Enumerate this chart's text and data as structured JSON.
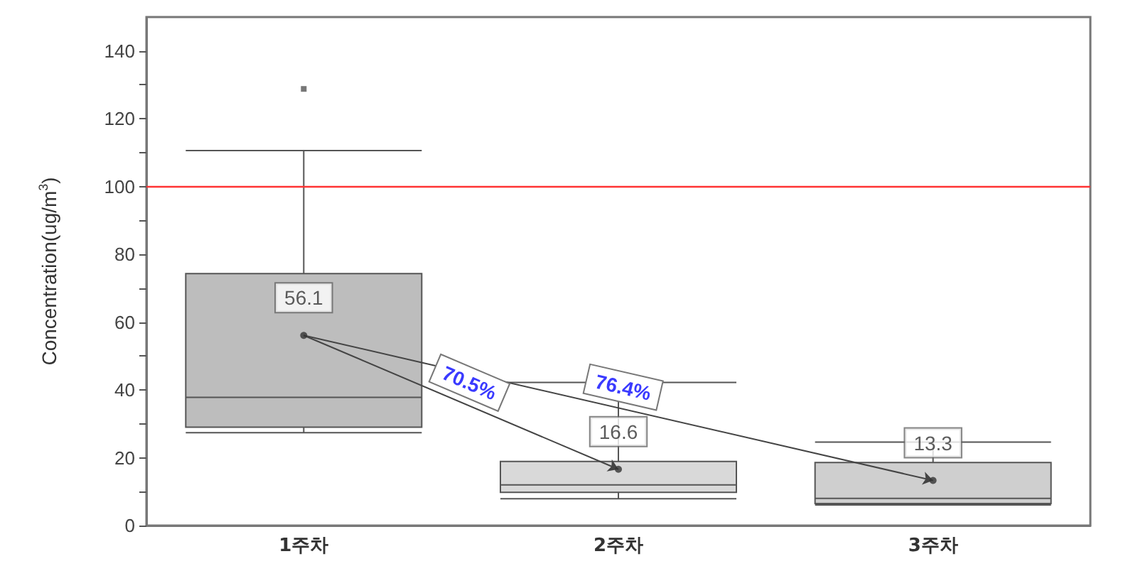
{
  "chart_data": {
    "type": "box",
    "ylabel": "Concentration(ug/m$^{3}$)",
    "categories": [
      "1주차",
      "2주차",
      "3주차"
    ],
    "series": [
      {
        "type": "box",
        "colors": [
          "#bdbdbd",
          "#d9d9d9",
          "#cfcfcf"
        ],
        "boxes": [
          {
            "low": 27.4,
            "q1": 29,
            "median": 37.8,
            "q3": 74.3,
            "high": 110.6,
            "outliers": [
              128.8
            ]
          },
          {
            "low": 7.9,
            "q1": 9.8,
            "median": 12,
            "q3": 18.9,
            "high": 42.2
          },
          {
            "low": 6.1,
            "q1": 6.5,
            "median": 8,
            "q3": 18.6,
            "high": 24.6
          }
        ]
      },
      {
        "type": "scatter",
        "color": "#333333",
        "x": [
          "1주차",
          "2주차",
          "3주차"
        ],
        "values": [
          56.1,
          16.6,
          13.3
        ]
      }
    ],
    "data_labels": true,
    "annotations": [
      "70.5%",
      "76.4%"
    ],
    "ref_lines": [
      {
        "axis": "y",
        "value": 100,
        "color": "#ff3333"
      }
    ],
    "ylim": [
      0,
      150
    ],
    "yticks": [
      0,
      {
        "value": 10,
        "label": null
      },
      20,
      {
        "value": 30,
        "label": null
      },
      40,
      {
        "value": 50,
        "label": null
      },
      60,
      {
        "value": 70,
        "label": null
      },
      80,
      {
        "value": 90,
        "label": null
      },
      100,
      {
        "value": 110,
        "label": null
      },
      120,
      {
        "value": 130,
        "label": null
      },
      140
    ],
    "grid": false
  }
}
